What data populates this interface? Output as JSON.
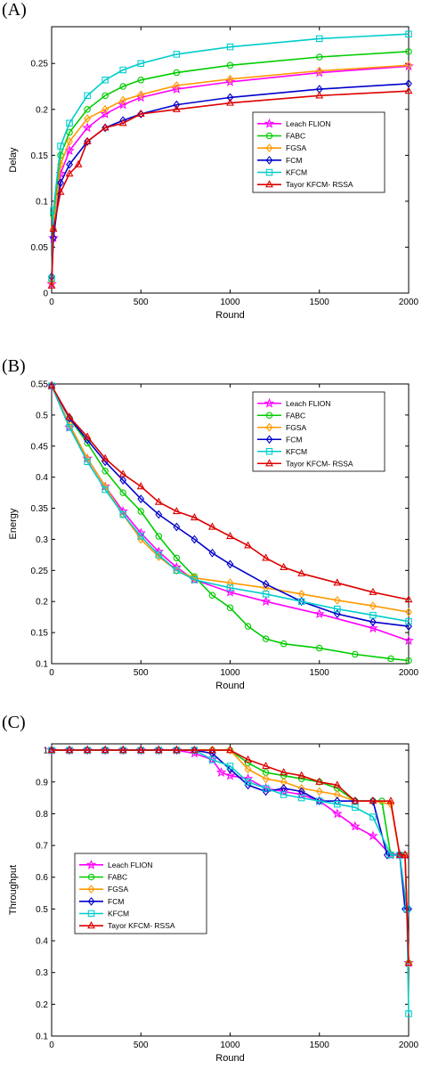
{
  "panels": [
    {
      "label": "(A)"
    },
    {
      "label": "(B)"
    },
    {
      "label": "(C)"
    }
  ],
  "chart_data": [
    {
      "type": "line",
      "xlabel": "Round",
      "ylabel": "Delay",
      "xlim": [
        0,
        2000
      ],
      "ylim": [
        0,
        0.29
      ],
      "xticks": [
        0,
        500,
        1000,
        1500,
        2000
      ],
      "xtick_labels": [
        "0",
        "500",
        "1000",
        "1500",
        "2000"
      ],
      "yticks": [
        0,
        0.05,
        0.1,
        0.15,
        0.2,
        0.25
      ],
      "ytick_labels": [
        "0",
        "0.05",
        "0.1",
        "0.15",
        "0.2",
        "0.25"
      ],
      "legend_position": "center-right",
      "grid": false,
      "series": [
        {
          "name": "Leach FLION",
          "color": "#ff00ff",
          "marker": "star",
          "x": [
            0,
            10,
            50,
            100,
            200,
            300,
            400,
            500,
            700,
            1000,
            1500,
            2000
          ],
          "y": [
            0.01,
            0.06,
            0.13,
            0.155,
            0.18,
            0.195,
            0.205,
            0.213,
            0.222,
            0.23,
            0.24,
            0.247
          ]
        },
        {
          "name": "FABC",
          "color": "#00cc00",
          "marker": "circle",
          "x": [
            0,
            10,
            50,
            100,
            200,
            300,
            400,
            500,
            700,
            1000,
            1500,
            2000
          ],
          "y": [
            0.015,
            0.085,
            0.15,
            0.175,
            0.2,
            0.215,
            0.225,
            0.232,
            0.24,
            0.248,
            0.257,
            0.263
          ]
        },
        {
          "name": "FGSA",
          "color": "#ff9900",
          "marker": "diamond",
          "x": [
            0,
            10,
            50,
            100,
            200,
            300,
            400,
            500,
            700,
            1000,
            1500,
            2000
          ],
          "y": [
            0.012,
            0.07,
            0.14,
            0.165,
            0.19,
            0.2,
            0.21,
            0.216,
            0.226,
            0.233,
            0.242,
            0.248
          ]
        },
        {
          "name": "FCM",
          "color": "#0000cc",
          "marker": "diamond",
          "x": [
            0,
            10,
            50,
            100,
            200,
            300,
            400,
            500,
            700,
            1000,
            1500,
            2000
          ],
          "y": [
            0.018,
            0.06,
            0.12,
            0.14,
            0.165,
            0.18,
            0.188,
            0.195,
            0.205,
            0.213,
            0.222,
            0.228
          ]
        },
        {
          "name": "KFCM",
          "color": "#00cccc",
          "marker": "square",
          "x": [
            0,
            10,
            50,
            100,
            200,
            300,
            400,
            500,
            700,
            1000,
            1500,
            2000
          ],
          "y": [
            0.016,
            0.09,
            0.16,
            0.185,
            0.215,
            0.232,
            0.243,
            0.25,
            0.26,
            0.268,
            0.277,
            0.282
          ]
        },
        {
          "name": "Tayor KFCM- RSSA",
          "color": "#dd0000",
          "marker": "triangle",
          "x": [
            0,
            10,
            50,
            100,
            150,
            200,
            300,
            400,
            500,
            700,
            1000,
            1500,
            2000
          ],
          "y": [
            0.008,
            0.07,
            0.11,
            0.13,
            0.14,
            0.165,
            0.18,
            0.185,
            0.195,
            0.2,
            0.207,
            0.215,
            0.22
          ]
        }
      ]
    },
    {
      "type": "line",
      "xlabel": "Round",
      "ylabel": "Energy",
      "xlim": [
        0,
        2000
      ],
      "ylim": [
        0.1,
        0.55
      ],
      "xticks": [
        0,
        500,
        1000,
        1500,
        2000
      ],
      "xtick_labels": [
        "0",
        "500",
        "1000",
        "1500",
        "2000"
      ],
      "yticks": [
        0.1,
        0.15,
        0.2,
        0.25,
        0.3,
        0.35,
        0.4,
        0.45,
        0.5,
        0.55
      ],
      "ytick_labels": [
        "0.1",
        "0.15",
        "0.2",
        "0.25",
        "0.3",
        "0.35",
        "0.4",
        "0.45",
        "0.5",
        "0.55"
      ],
      "legend_position": "top-right",
      "grid": false,
      "series": [
        {
          "name": "Leach FLION",
          "color": "#ff00ff",
          "marker": "star",
          "x": [
            0,
            100,
            200,
            300,
            400,
            500,
            600,
            700,
            800,
            1000,
            1200,
            1500,
            1800,
            2000
          ],
          "y": [
            0.547,
            0.48,
            0.43,
            0.385,
            0.345,
            0.31,
            0.28,
            0.255,
            0.235,
            0.215,
            0.2,
            0.18,
            0.157,
            0.137
          ]
        },
        {
          "name": "FABC",
          "color": "#00cc00",
          "marker": "circle",
          "x": [
            0,
            100,
            200,
            300,
            400,
            500,
            600,
            700,
            800,
            900,
            1000,
            1100,
            1200,
            1300,
            1500,
            1700,
            1900,
            2000
          ],
          "y": [
            0.547,
            0.495,
            0.455,
            0.41,
            0.375,
            0.345,
            0.305,
            0.27,
            0.24,
            0.21,
            0.19,
            0.16,
            0.14,
            0.132,
            0.125,
            0.115,
            0.108,
            0.105
          ]
        },
        {
          "name": "FGSA",
          "color": "#ff9900",
          "marker": "diamond",
          "x": [
            0,
            100,
            200,
            300,
            400,
            500,
            600,
            700,
            800,
            1000,
            1200,
            1400,
            1600,
            1800,
            2000
          ],
          "y": [
            0.547,
            0.485,
            0.43,
            0.385,
            0.34,
            0.3,
            0.272,
            0.25,
            0.238,
            0.23,
            0.222,
            0.212,
            0.202,
            0.193,
            0.183
          ]
        },
        {
          "name": "FCM",
          "color": "#0000cc",
          "marker": "diamond",
          "x": [
            0,
            100,
            200,
            300,
            400,
            500,
            600,
            700,
            800,
            900,
            1000,
            1200,
            1400,
            1600,
            1800,
            2000
          ],
          "y": [
            0.547,
            0.495,
            0.46,
            0.425,
            0.395,
            0.365,
            0.34,
            0.32,
            0.3,
            0.278,
            0.26,
            0.228,
            0.2,
            0.18,
            0.167,
            0.16
          ]
        },
        {
          "name": "KFCM",
          "color": "#00cccc",
          "marker": "square",
          "x": [
            0,
            100,
            200,
            300,
            400,
            500,
            600,
            700,
            800,
            1000,
            1200,
            1400,
            1600,
            1800,
            2000
          ],
          "y": [
            0.547,
            0.48,
            0.425,
            0.38,
            0.34,
            0.305,
            0.275,
            0.25,
            0.235,
            0.222,
            0.212,
            0.2,
            0.188,
            0.178,
            0.168
          ]
        },
        {
          "name": "Tayor KFCM- RSSA",
          "color": "#dd0000",
          "marker": "triangle",
          "x": [
            0,
            100,
            200,
            300,
            400,
            500,
            600,
            700,
            800,
            900,
            1000,
            1100,
            1200,
            1300,
            1400,
            1600,
            1800,
            2000
          ],
          "y": [
            0.547,
            0.497,
            0.465,
            0.43,
            0.405,
            0.385,
            0.36,
            0.345,
            0.335,
            0.32,
            0.305,
            0.29,
            0.27,
            0.255,
            0.245,
            0.23,
            0.215,
            0.203
          ]
        }
      ]
    },
    {
      "type": "line",
      "xlabel": "Round",
      "ylabel": "Throughput",
      "xlim": [
        0,
        2000
      ],
      "ylim": [
        0.1,
        1.02
      ],
      "xticks": [
        0,
        500,
        1000,
        1500,
        2000
      ],
      "xtick_labels": [
        "0",
        "500",
        "1000",
        "1500",
        "2000"
      ],
      "yticks": [
        0.1,
        0.2,
        0.3,
        0.4,
        0.5,
        0.6,
        0.7,
        0.8,
        0.9,
        1
      ],
      "ytick_labels": [
        "0.1",
        "0.2",
        "0.3",
        "0.4",
        "0.5",
        "0.6",
        "0.7",
        "0.8",
        "0.9",
        "1"
      ],
      "legend_position": "center-left",
      "grid": false,
      "series": [
        {
          "name": "Leach FLION",
          "color": "#ff00ff",
          "marker": "star",
          "x": [
            0,
            100,
            200,
            300,
            400,
            500,
            600,
            700,
            800,
            900,
            950,
            1000,
            1100,
            1200,
            1300,
            1400,
            1500,
            1600,
            1700,
            1800,
            1900,
            1950,
            1980,
            2000
          ],
          "y": [
            1,
            1,
            1,
            1,
            1,
            1,
            1,
            1,
            0.99,
            0.97,
            0.93,
            0.92,
            0.91,
            0.88,
            0.87,
            0.86,
            0.84,
            0.8,
            0.76,
            0.73,
            0.67,
            0.67,
            0.67,
            0.33
          ]
        },
        {
          "name": "FABC",
          "color": "#00cc00",
          "marker": "circle",
          "x": [
            0,
            100,
            200,
            300,
            400,
            500,
            600,
            700,
            800,
            900,
            1000,
            1100,
            1200,
            1300,
            1400,
            1500,
            1600,
            1700,
            1800,
            1850,
            1900,
            1950,
            1980,
            2000
          ],
          "y": [
            1,
            1,
            1,
            1,
            1,
            1,
            1,
            1,
            1,
            1,
            1,
            0.96,
            0.93,
            0.92,
            0.91,
            0.9,
            0.88,
            0.84,
            0.84,
            0.84,
            0.67,
            0.67,
            0.67,
            0.33
          ]
        },
        {
          "name": "FGSA",
          "color": "#ff9900",
          "marker": "diamond",
          "x": [
            0,
            100,
            200,
            300,
            400,
            500,
            600,
            700,
            800,
            900,
            1000,
            1100,
            1200,
            1300,
            1400,
            1500,
            1600,
            1700,
            1800,
            1900,
            1950,
            1980,
            2000
          ],
          "y": [
            1,
            1,
            1,
            1,
            1,
            1,
            1,
            1,
            1,
            1,
            1,
            0.94,
            0.91,
            0.9,
            0.88,
            0.87,
            0.86,
            0.84,
            0.84,
            0.83,
            0.67,
            0.67,
            0.33
          ]
        },
        {
          "name": "FCM",
          "color": "#0000cc",
          "marker": "diamond",
          "x": [
            0,
            100,
            200,
            300,
            400,
            500,
            600,
            700,
            800,
            900,
            1000,
            1100,
            1200,
            1300,
            1400,
            1500,
            1600,
            1700,
            1800,
            1880,
            1950,
            1980,
            2000
          ],
          "y": [
            1,
            1,
            1,
            1,
            1,
            1,
            1,
            1,
            1,
            0.99,
            0.94,
            0.89,
            0.87,
            0.88,
            0.87,
            0.84,
            0.84,
            0.84,
            0.84,
            0.67,
            0.67,
            0.5,
            0.5
          ]
        },
        {
          "name": "KFCM",
          "color": "#00cccc",
          "marker": "square",
          "x": [
            0,
            100,
            200,
            300,
            400,
            500,
            600,
            700,
            800,
            900,
            1000,
            1100,
            1200,
            1300,
            1400,
            1500,
            1600,
            1700,
            1800,
            1900,
            1950,
            1990,
            2000
          ],
          "y": [
            1,
            1,
            1,
            1,
            1,
            1,
            1,
            1,
            1,
            0.97,
            0.95,
            0.9,
            0.88,
            0.86,
            0.85,
            0.84,
            0.83,
            0.82,
            0.79,
            0.67,
            0.67,
            0.5,
            0.17
          ]
        },
        {
          "name": "Tayor KFCM- RSSA",
          "color": "#dd0000",
          "marker": "triangle",
          "x": [
            0,
            100,
            200,
            300,
            400,
            500,
            600,
            700,
            800,
            900,
            1000,
            1100,
            1200,
            1300,
            1400,
            1500,
            1600,
            1700,
            1800,
            1900,
            1950,
            1980,
            2000
          ],
          "y": [
            1,
            1,
            1,
            1,
            1,
            1,
            1,
            1,
            1,
            1,
            1,
            0.97,
            0.95,
            0.93,
            0.92,
            0.9,
            0.89,
            0.84,
            0.84,
            0.84,
            0.67,
            0.67,
            0.33
          ]
        }
      ]
    }
  ]
}
